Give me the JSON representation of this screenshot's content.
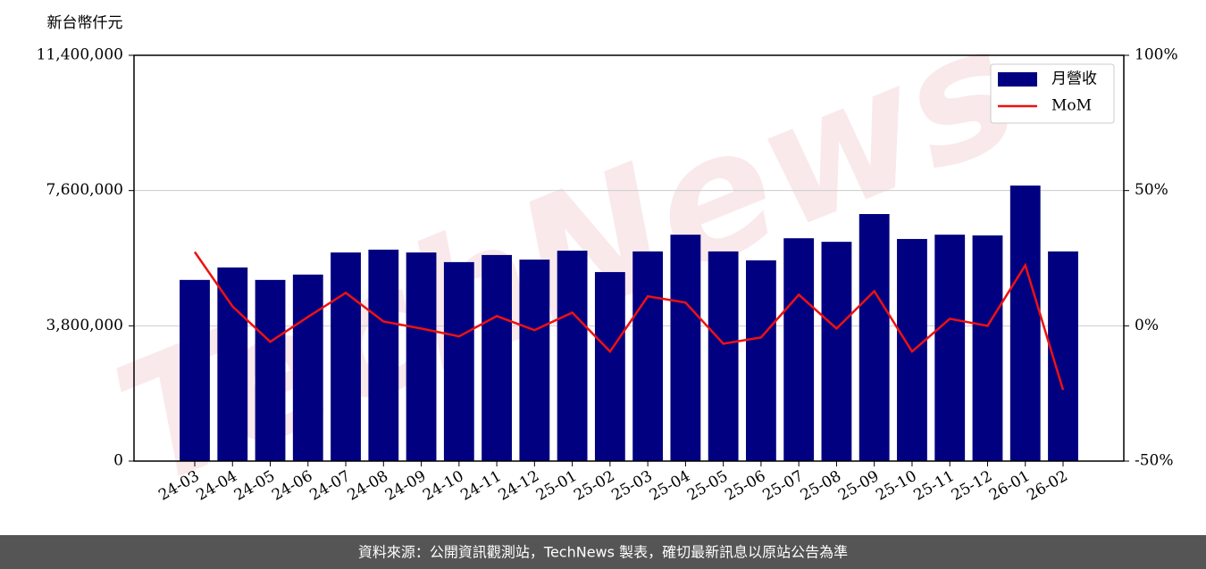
{
  "chart_data": {
    "type": "bar_line",
    "ylabel": "新台幣仟元",
    "source": "資料來源：公開資訊觀測站，TechNews 製表，確切最新訊息以原站公告為準",
    "watermark": "TechNews",
    "categories": [
      "24-03",
      "24-04",
      "24-05",
      "24-06",
      "24-07",
      "24-08",
      "24-09",
      "24-10",
      "24-11",
      "24-12",
      "25-01",
      "25-02",
      "25-03",
      "25-04",
      "25-05",
      "25-06",
      "25-07",
      "25-08",
      "25-09",
      "25-10",
      "25-11",
      "25-12",
      "26-01",
      "26-02"
    ],
    "series": [
      {
        "name": "月營收",
        "type": "bar",
        "color": "#000080",
        "values": [
          5090000,
          5440000,
          5090000,
          5240000,
          5860000,
          5940000,
          5860000,
          5590000,
          5790000,
          5660000,
          5910000,
          5310000,
          5890000,
          6360000,
          5890000,
          5640000,
          6260000,
          6160000,
          6940000,
          6240000,
          6360000,
          6340000,
          7740000,
          5890000
        ]
      },
      {
        "name": "MoM",
        "type": "line",
        "axis": "y2",
        "color": "#ee1111",
        "values": [
          27.3,
          7.2,
          -5.9,
          3.3,
          12.2,
          1.6,
          -1.0,
          -3.9,
          3.6,
          -1.6,
          4.9,
          -9.5,
          10.9,
          8.6,
          -6.6,
          -4.3,
          11.5,
          -1.0,
          12.8,
          -9.5,
          2.6,
          0,
          22.4,
          -23.7
        ]
      }
    ],
    "ylim": [
      0,
      11400000
    ],
    "yticks": [
      0,
      {
        "value": 3800000,
        "label": "3,800,000"
      },
      {
        "value": 7600000,
        "label": "7,600,000"
      },
      {
        "value": 11400000,
        "label": "11,400,000"
      }
    ],
    "y2lim": [
      -50,
      100
    ],
    "y2ticks": [
      {
        "value": -50,
        "label": "-50%"
      },
      {
        "value": 0,
        "label": "0%"
      },
      {
        "value": 50,
        "label": "50%"
      },
      {
        "value": 100,
        "label": "100%"
      }
    ],
    "grid": true,
    "legend": "upper right"
  }
}
